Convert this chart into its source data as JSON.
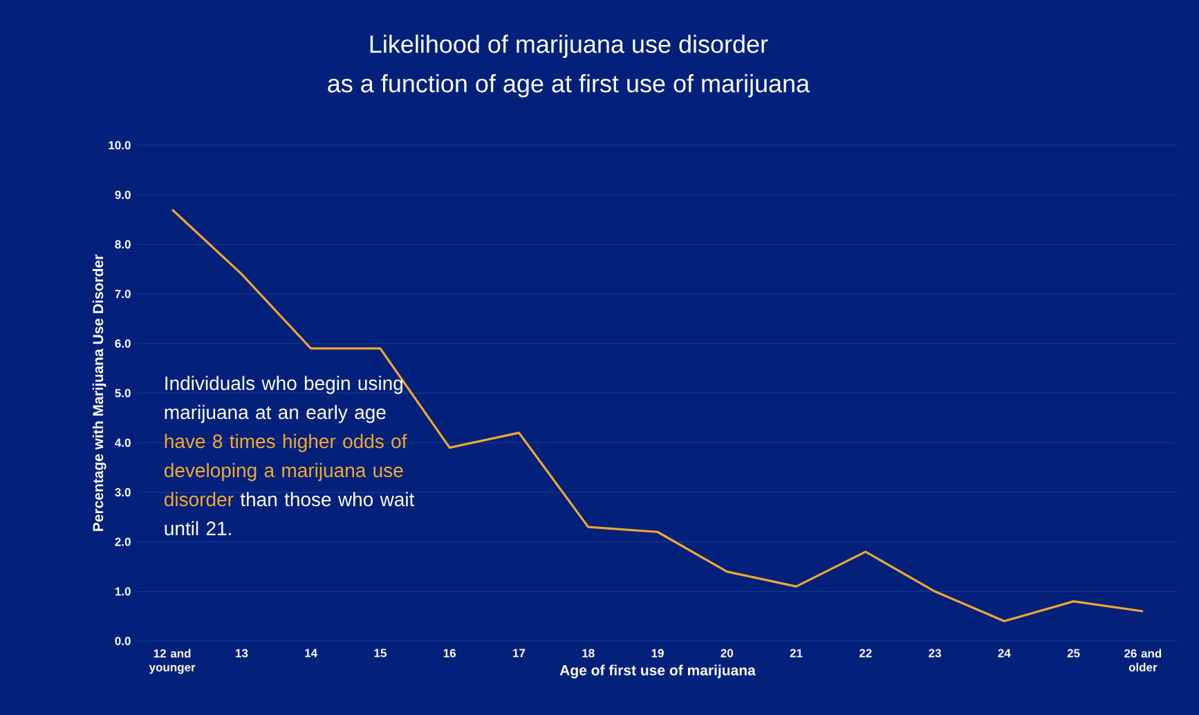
{
  "chart_data": {
    "type": "line",
    "title": "Likelihood of marijuana use disorder",
    "subtitle": "as a function of age at first use of marijuana",
    "xlabel": "Age of first use of marijuana",
    "ylabel": "Percentage with Marijuana Use Disorder",
    "categories": [
      "12 and younger",
      "13",
      "14",
      "15",
      "16",
      "17",
      "18",
      "19",
      "20",
      "21",
      "22",
      "23",
      "24",
      "25",
      "26 and older"
    ],
    "series": [
      {
        "color": "#f0a830",
        "values": [
          8.7,
          7.4,
          5.9,
          5.9,
          3.9,
          4.2,
          2.3,
          2.2,
          1.4,
          1.1,
          1.8,
          1.0,
          0.4,
          0.8,
          0.6
        ]
      }
    ],
    "ylim": [
      0,
      10
    ],
    "yticks": [
      {
        "value": 0,
        "label": "0.0"
      },
      {
        "value": 1,
        "label": "1.0"
      },
      {
        "value": 2,
        "label": "2.0"
      },
      {
        "value": 3,
        "label": "3.0"
      },
      {
        "value": 4,
        "label": "4.0"
      },
      {
        "value": 5,
        "label": "5.0"
      },
      {
        "value": 6,
        "label": "6.0"
      },
      {
        "value": 7,
        "label": "7.0"
      },
      {
        "value": 8,
        "label": "8.0"
      },
      {
        "value": 9,
        "label": "9.0"
      },
      {
        "value": 10,
        "label": "10.0"
      }
    ],
    "grid": "y",
    "marker": "none",
    "line_style": "solid",
    "annotations": [
      "Individuals who begin using marijuana at an early age",
      "have 8 times higher odds of developing a marijuana use disorder",
      "than those who wait until 21."
    ]
  }
}
